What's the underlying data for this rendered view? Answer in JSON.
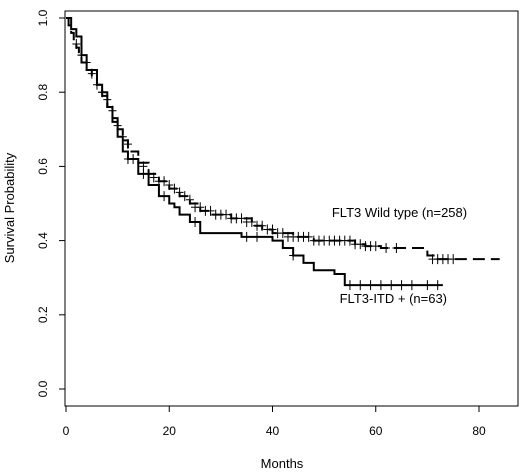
{
  "chart_data": {
    "type": "line",
    "subtype": "kaplan-meier",
    "title": "",
    "xlabel": "Months",
    "ylabel": "Survival Probability",
    "xlim": [
      0,
      85
    ],
    "ylim": [
      0,
      1.0
    ],
    "xticks": [
      0,
      20,
      40,
      60,
      80
    ],
    "yticks": [
      0.0,
      0.2,
      0.4,
      0.6,
      0.8,
      1.0
    ],
    "xtick_labels": [
      "0",
      "20",
      "40",
      "60",
      "80"
    ],
    "ytick_labels": [
      "0.0",
      "0.2",
      "0.4",
      "0.6",
      "0.8",
      "1.0"
    ],
    "grid": false,
    "legend": "none",
    "series": [
      {
        "name": "FLT3 Wild type (n=258)",
        "line_style": "dashed",
        "color": "#000000",
        "steps": [
          [
            0,
            1.0
          ],
          [
            0.5,
            0.98
          ],
          [
            1,
            0.96
          ],
          [
            1.5,
            0.94
          ],
          [
            2,
            0.92
          ],
          [
            2.5,
            0.9
          ],
          [
            3,
            0.88
          ],
          [
            4,
            0.86
          ],
          [
            5,
            0.84
          ],
          [
            6,
            0.82
          ],
          [
            7,
            0.79
          ],
          [
            8,
            0.76
          ],
          [
            9,
            0.73
          ],
          [
            10,
            0.7
          ],
          [
            11,
            0.67
          ],
          [
            12,
            0.64
          ],
          [
            14,
            0.61
          ],
          [
            16,
            0.58
          ],
          [
            18,
            0.56
          ],
          [
            20,
            0.54
          ],
          [
            22,
            0.52
          ],
          [
            24,
            0.5
          ],
          [
            26,
            0.48
          ],
          [
            28,
            0.47
          ],
          [
            32,
            0.46
          ],
          [
            36,
            0.44
          ],
          [
            38,
            0.43
          ],
          [
            40,
            0.42
          ],
          [
            44,
            0.41
          ],
          [
            48,
            0.4
          ],
          [
            52,
            0.4
          ],
          [
            56,
            0.39
          ],
          [
            58,
            0.385
          ],
          [
            61,
            0.38
          ],
          [
            66,
            0.38
          ],
          [
            70,
            0.36
          ],
          [
            72,
            0.35
          ],
          [
            84,
            0.35
          ]
        ],
        "censored": [
          [
            2,
            0.93
          ],
          [
            3,
            0.9
          ],
          [
            4,
            0.88
          ],
          [
            5,
            0.85
          ],
          [
            6,
            0.82
          ],
          [
            7,
            0.8
          ],
          [
            8,
            0.78
          ],
          [
            9,
            0.75
          ],
          [
            10,
            0.71
          ],
          [
            11,
            0.68
          ],
          [
            12,
            0.66
          ],
          [
            13,
            0.62
          ],
          [
            15,
            0.6
          ],
          [
            16,
            0.58
          ],
          [
            17,
            0.57
          ],
          [
            18,
            0.56
          ],
          [
            19,
            0.56
          ],
          [
            20,
            0.55
          ],
          [
            21,
            0.54
          ],
          [
            22,
            0.53
          ],
          [
            23,
            0.52
          ],
          [
            24,
            0.51
          ],
          [
            25,
            0.49
          ],
          [
            26,
            0.49
          ],
          [
            27,
            0.48
          ],
          [
            28,
            0.48
          ],
          [
            29,
            0.47
          ],
          [
            30,
            0.47
          ],
          [
            31,
            0.47
          ],
          [
            32,
            0.46
          ],
          [
            33,
            0.46
          ],
          [
            34,
            0.46
          ],
          [
            35,
            0.45
          ],
          [
            36,
            0.45
          ],
          [
            37,
            0.44
          ],
          [
            38,
            0.44
          ],
          [
            39,
            0.43
          ],
          [
            40,
            0.43
          ],
          [
            41,
            0.42
          ],
          [
            42,
            0.42
          ],
          [
            43,
            0.41
          ],
          [
            44,
            0.41
          ],
          [
            45,
            0.41
          ],
          [
            46,
            0.41
          ],
          [
            47,
            0.41
          ],
          [
            48,
            0.4
          ],
          [
            49,
            0.4
          ],
          [
            50,
            0.4
          ],
          [
            51,
            0.4
          ],
          [
            52,
            0.4
          ],
          [
            53,
            0.4
          ],
          [
            54,
            0.4
          ],
          [
            55,
            0.4
          ],
          [
            56,
            0.39
          ],
          [
            57,
            0.39
          ],
          [
            58,
            0.385
          ],
          [
            59,
            0.385
          ],
          [
            60,
            0.385
          ],
          [
            62,
            0.38
          ],
          [
            64,
            0.38
          ],
          [
            71,
            0.35
          ],
          [
            72,
            0.35
          ],
          [
            73,
            0.35
          ],
          [
            74,
            0.35
          ],
          [
            75,
            0.35
          ]
        ]
      },
      {
        "name": "FLT3-ITD + (n=63)",
        "line_style": "solid",
        "color": "#000000",
        "steps": [
          [
            0,
            1.0
          ],
          [
            1,
            0.97
          ],
          [
            2,
            0.95
          ],
          [
            3,
            0.9
          ],
          [
            4,
            0.86
          ],
          [
            6,
            0.82
          ],
          [
            7,
            0.8
          ],
          [
            8,
            0.76
          ],
          [
            9,
            0.72
          ],
          [
            10,
            0.68
          ],
          [
            11,
            0.64
          ],
          [
            12,
            0.62
          ],
          [
            14,
            0.58
          ],
          [
            16,
            0.55
          ],
          [
            18,
            0.52
          ],
          [
            20,
            0.5
          ],
          [
            21,
            0.49
          ],
          [
            22,
            0.47
          ],
          [
            24,
            0.45
          ],
          [
            26,
            0.42
          ],
          [
            30,
            0.42
          ],
          [
            34,
            0.41
          ],
          [
            40,
            0.4
          ],
          [
            42,
            0.38
          ],
          [
            44,
            0.36
          ],
          [
            46,
            0.34
          ],
          [
            48,
            0.32
          ],
          [
            50,
            0.32
          ],
          [
            52,
            0.31
          ],
          [
            54,
            0.28
          ],
          [
            73,
            0.28
          ]
        ],
        "censored": [
          [
            3,
            0.9
          ],
          [
            7,
            0.8
          ],
          [
            12,
            0.62
          ],
          [
            15,
            0.58
          ],
          [
            19,
            0.52
          ],
          [
            25,
            0.45
          ],
          [
            35,
            0.41
          ],
          [
            37,
            0.41
          ],
          [
            44,
            0.36
          ],
          [
            55,
            0.28
          ],
          [
            57,
            0.28
          ],
          [
            59,
            0.28
          ],
          [
            61,
            0.28
          ],
          [
            63,
            0.28
          ],
          [
            65,
            0.28
          ],
          [
            67,
            0.28
          ],
          [
            70,
            0.28
          ],
          [
            72,
            0.28
          ]
        ]
      }
    ],
    "annotations": [
      {
        "text": "FLT3 Wild type (n=258)",
        "x": 51.5,
        "y": 0.464
      },
      {
        "text": "FLT3-ITD + (n=63)",
        "x": 53,
        "y": 0.232
      }
    ]
  }
}
